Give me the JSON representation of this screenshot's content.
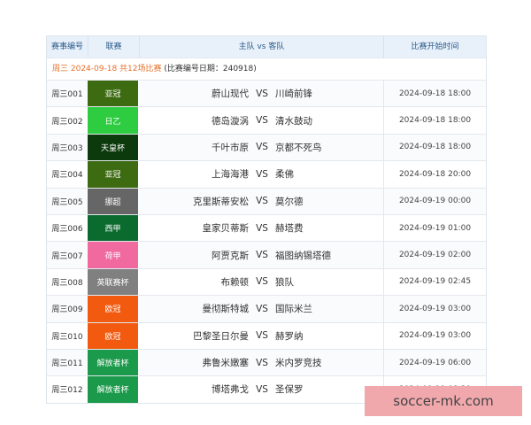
{
  "header": {
    "id": "赛事编号",
    "league": "联赛",
    "teams": "主队 vs 客队",
    "time": "比赛开始时间"
  },
  "date_row": {
    "highlight": "周三 2024-09-18 共12场比赛",
    "note": "(比赛编号日期：240918)"
  },
  "vs_label": "VS",
  "matches": [
    {
      "id": "周三001",
      "league": "亚冠",
      "color": "#3d6b12",
      "home": "蔚山现代",
      "away": "川崎前锋",
      "time": "2024-09-18 18:00"
    },
    {
      "id": "周三002",
      "league": "日乙",
      "color": "#2ecc40",
      "home": "德岛漩涡",
      "away": "清水鼓动",
      "time": "2024-09-18 18:00"
    },
    {
      "id": "周三003",
      "league": "天皇杯",
      "color": "#0c3a0c",
      "home": "千叶市原",
      "away": "京都不死鸟",
      "time": "2024-09-18 18:00"
    },
    {
      "id": "周三004",
      "league": "亚冠",
      "color": "#3d6b12",
      "home": "上海海港",
      "away": "柔佛",
      "time": "2024-09-18 20:00"
    },
    {
      "id": "周三005",
      "league": "挪超",
      "color": "#666666",
      "home": "克里斯蒂安松",
      "away": "莫尔德",
      "time": "2024-09-19 00:00"
    },
    {
      "id": "周三006",
      "league": "西甲",
      "color": "#0b6a2e",
      "home": "皇家贝蒂斯",
      "away": "赫塔费",
      "time": "2024-09-19 01:00"
    },
    {
      "id": "周三007",
      "league": "荷甲",
      "color": "#f06aa0",
      "home": "阿贾克斯",
      "away": "福图纳锡塔德",
      "time": "2024-09-19 02:00"
    },
    {
      "id": "周三008",
      "league": "英联赛杯",
      "color": "#808080",
      "home": "布赖顿",
      "away": "狼队",
      "time": "2024-09-19 02:45"
    },
    {
      "id": "周三009",
      "league": "欧冠",
      "color": "#f25a10",
      "home": "曼彻斯特城",
      "away": "国际米兰",
      "time": "2024-09-19 03:00"
    },
    {
      "id": "周三010",
      "league": "欧冠",
      "color": "#f25a10",
      "home": "巴黎圣日尔曼",
      "away": "赫罗纳",
      "time": "2024-09-19 03:00"
    },
    {
      "id": "周三011",
      "league": "解放者杯",
      "color": "#1a9a4a",
      "home": "弗鲁米嫩塞",
      "away": "米内罗竞技",
      "time": "2024-09-19 06:00"
    },
    {
      "id": "周三012",
      "league": "解放者杯",
      "color": "#1a9a4a",
      "home": "博塔弗戈",
      "away": "圣保罗",
      "time": "2024-09-19 08:30"
    }
  ],
  "watermark": "soccer-mk.com"
}
